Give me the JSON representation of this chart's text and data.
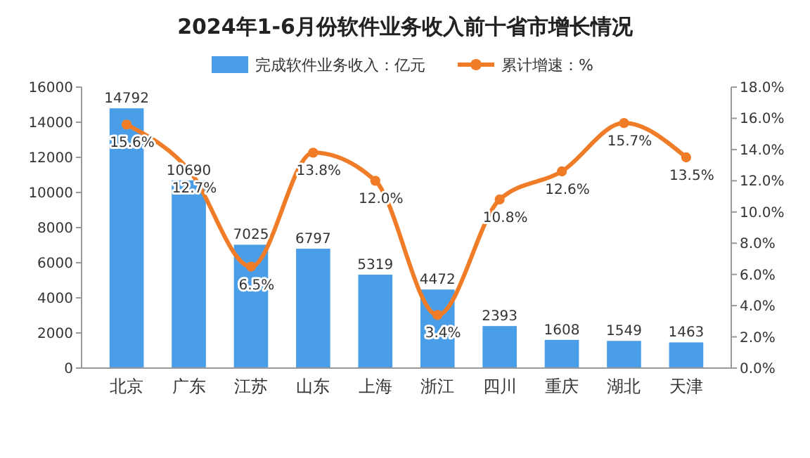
{
  "chart_data": {
    "type": "bar",
    "title": "2024年1-6月份软件业务收入前十省市增长情况",
    "categories": [
      "北京",
      "广东",
      "江苏",
      "山东",
      "上海",
      "浙江",
      "四川",
      "重庆",
      "湖北",
      "天津"
    ],
    "series": [
      {
        "name": "完成软件业务收入：亿元",
        "color": "#4a9ee8",
        "values": [
          14792,
          10690,
          7025,
          6797,
          5319,
          4472,
          2393,
          1608,
          1549,
          1463
        ]
      },
      {
        "name": "累计增速：%",
        "type": "line",
        "axis": "y2",
        "color": "#f07c28",
        "values": [
          15.6,
          12.7,
          6.5,
          13.8,
          12.0,
          3.4,
          10.8,
          12.6,
          15.7,
          13.5
        ],
        "value_labels": [
          "15.6%",
          "12.7%",
          "6.5%",
          "13.8%",
          "12.0%",
          "3.4%",
          "10.8%",
          "12.6%",
          "15.7%",
          "13.5%"
        ]
      }
    ],
    "ylim": [
      0,
      16000
    ],
    "yticks": [
      0,
      2000,
      4000,
      6000,
      8000,
      10000,
      12000,
      14000,
      16000
    ],
    "y2lim": [
      0,
      18
    ],
    "y2ticks": [
      {
        "value": 0,
        "label": "0.0%"
      },
      {
        "value": 2,
        "label": "2.0%"
      },
      {
        "value": 4,
        "label": "4.0%"
      },
      {
        "value": 6,
        "label": "6.0%"
      },
      {
        "value": 8,
        "label": "8.0%"
      },
      {
        "value": 10,
        "label": "10.0%"
      },
      {
        "value": 12,
        "label": "12.0%"
      },
      {
        "value": 14,
        "label": "14.0%"
      },
      {
        "value": 16,
        "label": "16.0%"
      },
      {
        "value": 18,
        "label": "18.0%"
      }
    ],
    "data_labels": true,
    "legend": "top",
    "marker": "circle",
    "grid": false
  }
}
